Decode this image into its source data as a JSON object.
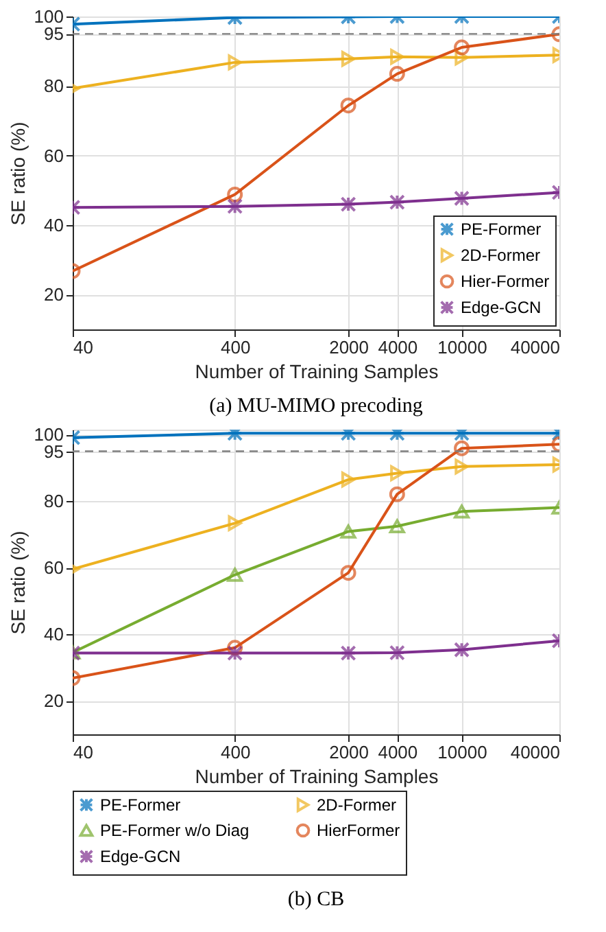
{
  "chart_data": [
    {
      "type": "line",
      "x": [
        40,
        400,
        2000,
        4000,
        10000,
        40000
      ],
      "log": "x",
      "xlabel": "Number of Training Samples",
      "ylabel": "SE ratio  (%)",
      "xlim": [
        40,
        40000
      ],
      "xticks": [
        40,
        400,
        2000,
        4000,
        10000,
        40000
      ],
      "ylim": [
        10,
        100
      ],
      "yticks": [
        20,
        40,
        60,
        80,
        95,
        100
      ],
      "grid": true,
      "legend": "bottom right",
      "line_style": "solid",
      "annotations": [
        "(a) MU-MIMO precoding"
      ],
      "ref_lines": [
        {
          "axis": "y",
          "value": 95,
          "color": "#808080",
          "line_style": "dashed"
        }
      ],
      "series": [
        {
          "name": "PE-Former",
          "color": "#0072bd",
          "marker": "cross",
          "values": [
            97.8,
            99.7,
            99.9,
            100,
            100,
            100
          ]
        },
        {
          "name": "2D-Former",
          "color": "#edb120",
          "marker": "triangle-right",
          "values": [
            79.3,
            86.8,
            87.8,
            88.4,
            88.2,
            88.9
          ]
        },
        {
          "name": "Hier-Former",
          "color": "#d95319",
          "marker": "circle",
          "values": [
            26.8,
            48.8,
            74.4,
            83.5,
            91.1,
            94.9
          ]
        },
        {
          "name": "Edge-GCN",
          "color": "#7e2f8e",
          "marker": "cross",
          "values": [
            45.1,
            45.4,
            46.0,
            46.6,
            47.7,
            49.4
          ]
        }
      ]
    },
    {
      "type": "line",
      "x": [
        40,
        400,
        2000,
        4000,
        10000,
        40000
      ],
      "log": "x",
      "xlabel": "Number of Training Samples",
      "ylabel": "SE ratio  (%)",
      "xlim": [
        40,
        40000
      ],
      "xticks": [
        40,
        400,
        2000,
        4000,
        10000,
        40000
      ],
      "ylim": [
        10,
        101.5
      ],
      "yticks": [
        20,
        40,
        60,
        80,
        95,
        100
      ],
      "grid": true,
      "legend": "bottom",
      "line_style": "solid",
      "annotations": [
        "(b) CB"
      ],
      "ref_lines": [
        {
          "axis": "y",
          "value": 95,
          "color": "#808080",
          "line_style": "dashed"
        }
      ],
      "series": [
        {
          "name": "PE-Former",
          "color": "#0072bd",
          "marker": "cross",
          "values": [
            99.1,
            100.4,
            100.4,
            100.4,
            100.4,
            100.4
          ]
        },
        {
          "name": "2D-Former",
          "color": "#edb120",
          "marker": "triangle-right",
          "values": [
            59.6,
            73.4,
            86.5,
            88.4,
            90.4,
            91.0
          ]
        },
        {
          "name": "PE-Former w/o Diag",
          "color": "#77ac30",
          "marker": "triangle",
          "values": [
            34.6,
            57.9,
            70.9,
            72.5,
            76.9,
            78.1
          ]
        },
        {
          "name": "HierFormer",
          "color": "#d95319",
          "marker": "circle",
          "values": [
            26.9,
            36.0,
            58.5,
            82.1,
            95.9,
            97.1
          ]
        },
        {
          "name": "Edge-GCN",
          "color": "#7e2f8e",
          "marker": "cross",
          "values": [
            34.4,
            34.4,
            34.4,
            34.5,
            35.4,
            38.1
          ]
        }
      ]
    }
  ]
}
